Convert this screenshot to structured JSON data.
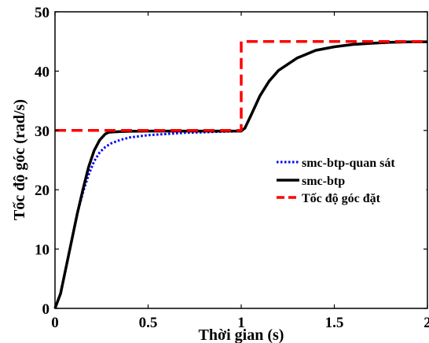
{
  "chart_data": {
    "type": "line",
    "xlabel": "Thời gian (s)",
    "ylabel": "Tốc độ góc (rad/s)",
    "xlim": [
      0,
      2
    ],
    "ylim": [
      0,
      50
    ],
    "xticks": [
      0,
      0.5,
      1,
      1.5,
      2
    ],
    "xtick_labels": [
      "0",
      "0.5",
      "1",
      "1.5",
      "2"
    ],
    "yticks": [
      0,
      10,
      20,
      30,
      40,
      50
    ],
    "ytick_labels": [
      "0",
      "10",
      "20",
      "30",
      "40",
      "50"
    ],
    "grid": false,
    "legend_position": "center-right",
    "series": [
      {
        "name": "smc-btp-quan sát",
        "color": "#0000ff",
        "style": "dotted",
        "x": [
          0,
          0.03,
          0.06,
          0.09,
          0.12,
          0.15,
          0.18,
          0.21,
          0.24,
          0.27,
          0.3,
          0.35,
          0.4,
          0.5,
          0.6,
          0.7,
          0.8,
          0.9,
          0.98,
          1.0,
          1.02,
          1.05,
          1.1,
          1.15,
          1.2,
          1.3,
          1.4,
          1.5,
          1.6,
          1.7,
          1.8,
          1.9,
          2.0
        ],
        "y": [
          0,
          2.5,
          7,
          11.5,
          16,
          19.5,
          22.5,
          24.8,
          26.3,
          27.2,
          27.8,
          28.4,
          28.8,
          29.2,
          29.4,
          29.6,
          29.7,
          29.8,
          29.85,
          29.9,
          30.4,
          32.4,
          35.8,
          38.3,
          40.1,
          42.2,
          43.5,
          44.1,
          44.5,
          44.7,
          44.85,
          44.92,
          44.95
        ]
      },
      {
        "name": "smc-btp",
        "color": "#000000",
        "style": "solid",
        "x": [
          0,
          0.03,
          0.06,
          0.09,
          0.12,
          0.15,
          0.18,
          0.21,
          0.24,
          0.27,
          0.29,
          0.31,
          0.35,
          0.4,
          0.5,
          0.6,
          0.7,
          0.8,
          0.9,
          0.98,
          1.0,
          1.02,
          1.05,
          1.1,
          1.15,
          1.2,
          1.3,
          1.4,
          1.5,
          1.6,
          1.7,
          1.8,
          1.9,
          2.0
        ],
        "y": [
          0,
          2.5,
          7,
          11.5,
          16,
          20,
          23.8,
          26.6,
          28.4,
          29.4,
          29.7,
          29.75,
          29.8,
          29.85,
          29.9,
          29.9,
          29.9,
          29.9,
          29.9,
          29.9,
          29.9,
          30.4,
          32.4,
          35.8,
          38.3,
          40.1,
          42.2,
          43.5,
          44.1,
          44.5,
          44.7,
          44.85,
          44.92,
          44.95
        ]
      },
      {
        "name": "Tốc độ góc đặt",
        "color": "#ff0000",
        "style": "dashed",
        "x": [
          0,
          1,
          1,
          2
        ],
        "y": [
          30,
          30,
          45,
          45
        ]
      }
    ]
  }
}
